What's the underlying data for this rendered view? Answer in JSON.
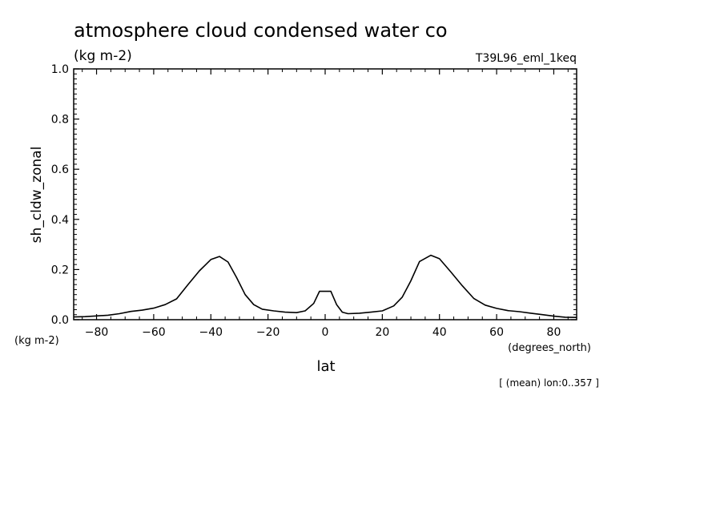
{
  "chart_data": {
    "type": "line",
    "title": "atmosphere cloud condensed water co",
    "units": "(kg m-2)",
    "experiment": "T39L96_eml_1keq",
    "ylabel": "sh_cldw_zonal",
    "ylabel_units": "(kg m-2)",
    "xlabel": "lat",
    "xunits": "(degrees_north)",
    "footnote": "[ (mean) lon:0..357 ]",
    "xlim": [
      -88,
      88
    ],
    "ylim": [
      0,
      1
    ],
    "xticks": [
      -80,
      -60,
      -40,
      -20,
      0,
      20,
      40,
      60,
      80
    ],
    "xtick_labels": [
      "−80",
      "−60",
      "−40",
      "−20",
      "0",
      "20",
      "40",
      "60",
      "80"
    ],
    "yticks": [
      0,
      0.2,
      0.4,
      0.6,
      0.8,
      1.0
    ],
    "ytick_labels": [
      "0.0",
      "0.2",
      "0.4",
      "0.6",
      "0.8",
      "1.0"
    ],
    "grid": false,
    "series": [
      {
        "name": "sh_cldw_zonal",
        "x": [
          -88,
          -84,
          -80,
          -76,
          -72,
          -68,
          -64,
          -60,
          -56,
          -52,
          -48,
          -44,
          -40,
          -37,
          -34,
          -31,
          -28,
          -25,
          -22,
          -18,
          -14,
          -10,
          -7,
          -4,
          -2,
          0,
          2,
          4,
          6,
          8,
          12,
          16,
          20,
          24,
          27,
          30,
          33,
          37,
          40,
          44,
          48,
          52,
          56,
          60,
          64,
          68,
          72,
          76,
          80,
          84,
          88
        ],
        "y": [
          0.011,
          0.012,
          0.015,
          0.018,
          0.024,
          0.033,
          0.038,
          0.046,
          0.06,
          0.083,
          0.14,
          0.195,
          0.24,
          0.252,
          0.23,
          0.168,
          0.1,
          0.06,
          0.042,
          0.035,
          0.03,
          0.028,
          0.035,
          0.065,
          0.113,
          0.113,
          0.113,
          0.06,
          0.03,
          0.024,
          0.026,
          0.03,
          0.035,
          0.055,
          0.09,
          0.155,
          0.232,
          0.257,
          0.243,
          0.19,
          0.135,
          0.085,
          0.058,
          0.045,
          0.036,
          0.032,
          0.026,
          0.02,
          0.014,
          0.01,
          0.009
        ]
      }
    ]
  }
}
